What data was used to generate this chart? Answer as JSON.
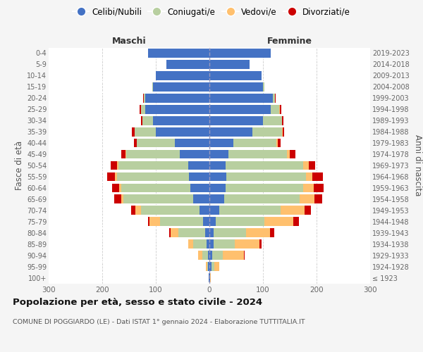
{
  "age_groups": [
    "100+",
    "95-99",
    "90-94",
    "85-89",
    "80-84",
    "75-79",
    "70-74",
    "65-69",
    "60-64",
    "55-59",
    "50-54",
    "45-49",
    "40-44",
    "35-39",
    "30-34",
    "25-29",
    "20-24",
    "15-19",
    "10-14",
    "5-9",
    "0-4"
  ],
  "birth_years": [
    "≤ 1923",
    "1924-1928",
    "1929-1933",
    "1934-1938",
    "1939-1943",
    "1944-1948",
    "1949-1953",
    "1954-1958",
    "1959-1963",
    "1964-1968",
    "1969-1973",
    "1974-1978",
    "1979-1983",
    "1984-1988",
    "1989-1993",
    "1994-1998",
    "1999-2003",
    "2004-2008",
    "2009-2013",
    "2014-2018",
    "2019-2023"
  ],
  "male": {
    "celibe": [
      1,
      2,
      3,
      5,
      8,
      12,
      18,
      30,
      35,
      38,
      40,
      55,
      65,
      100,
      105,
      120,
      120,
      105,
      100,
      80,
      115
    ],
    "coniugato": [
      0,
      2,
      10,
      25,
      50,
      80,
      110,
      130,
      130,
      135,
      130,
      100,
      70,
      40,
      20,
      8,
      3,
      2,
      0,
      0,
      0
    ],
    "vedovo": [
      0,
      2,
      8,
      10,
      15,
      20,
      10,
      5,
      4,
      3,
      2,
      1,
      1,
      0,
      0,
      0,
      0,
      0,
      0,
      0,
      0
    ],
    "divorziato": [
      0,
      0,
      0,
      0,
      2,
      3,
      8,
      12,
      12,
      15,
      12,
      8,
      5,
      5,
      3,
      2,
      1,
      0,
      0,
      0,
      0
    ]
  },
  "female": {
    "nubile": [
      1,
      4,
      5,
      8,
      8,
      12,
      18,
      28,
      30,
      32,
      30,
      35,
      45,
      80,
      100,
      115,
      118,
      100,
      98,
      75,
      115
    ],
    "coniugata": [
      0,
      5,
      20,
      40,
      60,
      90,
      115,
      140,
      145,
      148,
      145,
      110,
      80,
      55,
      35,
      15,
      5,
      2,
      0,
      0,
      0
    ],
    "vedova": [
      2,
      10,
      40,
      45,
      45,
      55,
      45,
      28,
      20,
      12,
      10,
      5,
      3,
      2,
      1,
      1,
      0,
      0,
      0,
      0,
      0
    ],
    "divorziata": [
      0,
      0,
      1,
      5,
      8,
      10,
      12,
      15,
      18,
      20,
      12,
      10,
      5,
      3,
      2,
      3,
      1,
      0,
      0,
      0,
      0
    ]
  },
  "colors": {
    "celibe": "#4472c4",
    "coniugato": "#b8cfa0",
    "vedovo": "#ffc06e",
    "divorziato": "#cc0000"
  },
  "xlim": 300,
  "title": "Popolazione per età, sesso e stato civile - 2024",
  "subtitle": "COMUNE DI POGGIARDO (LE) - Dati ISTAT 1° gennaio 2024 - Elaborazione TUTTITALIA.IT",
  "ylabel_left": "Fasce di età",
  "ylabel_right": "Anni di nascita",
  "label_maschi": "Maschi",
  "label_femmine": "Femmine",
  "legend_labels": [
    "Celibi/Nubili",
    "Coniugati/e",
    "Vedovi/e",
    "Divorziati/e"
  ],
  "bg_color": "#f5f5f5",
  "plot_bg": "#ffffff"
}
